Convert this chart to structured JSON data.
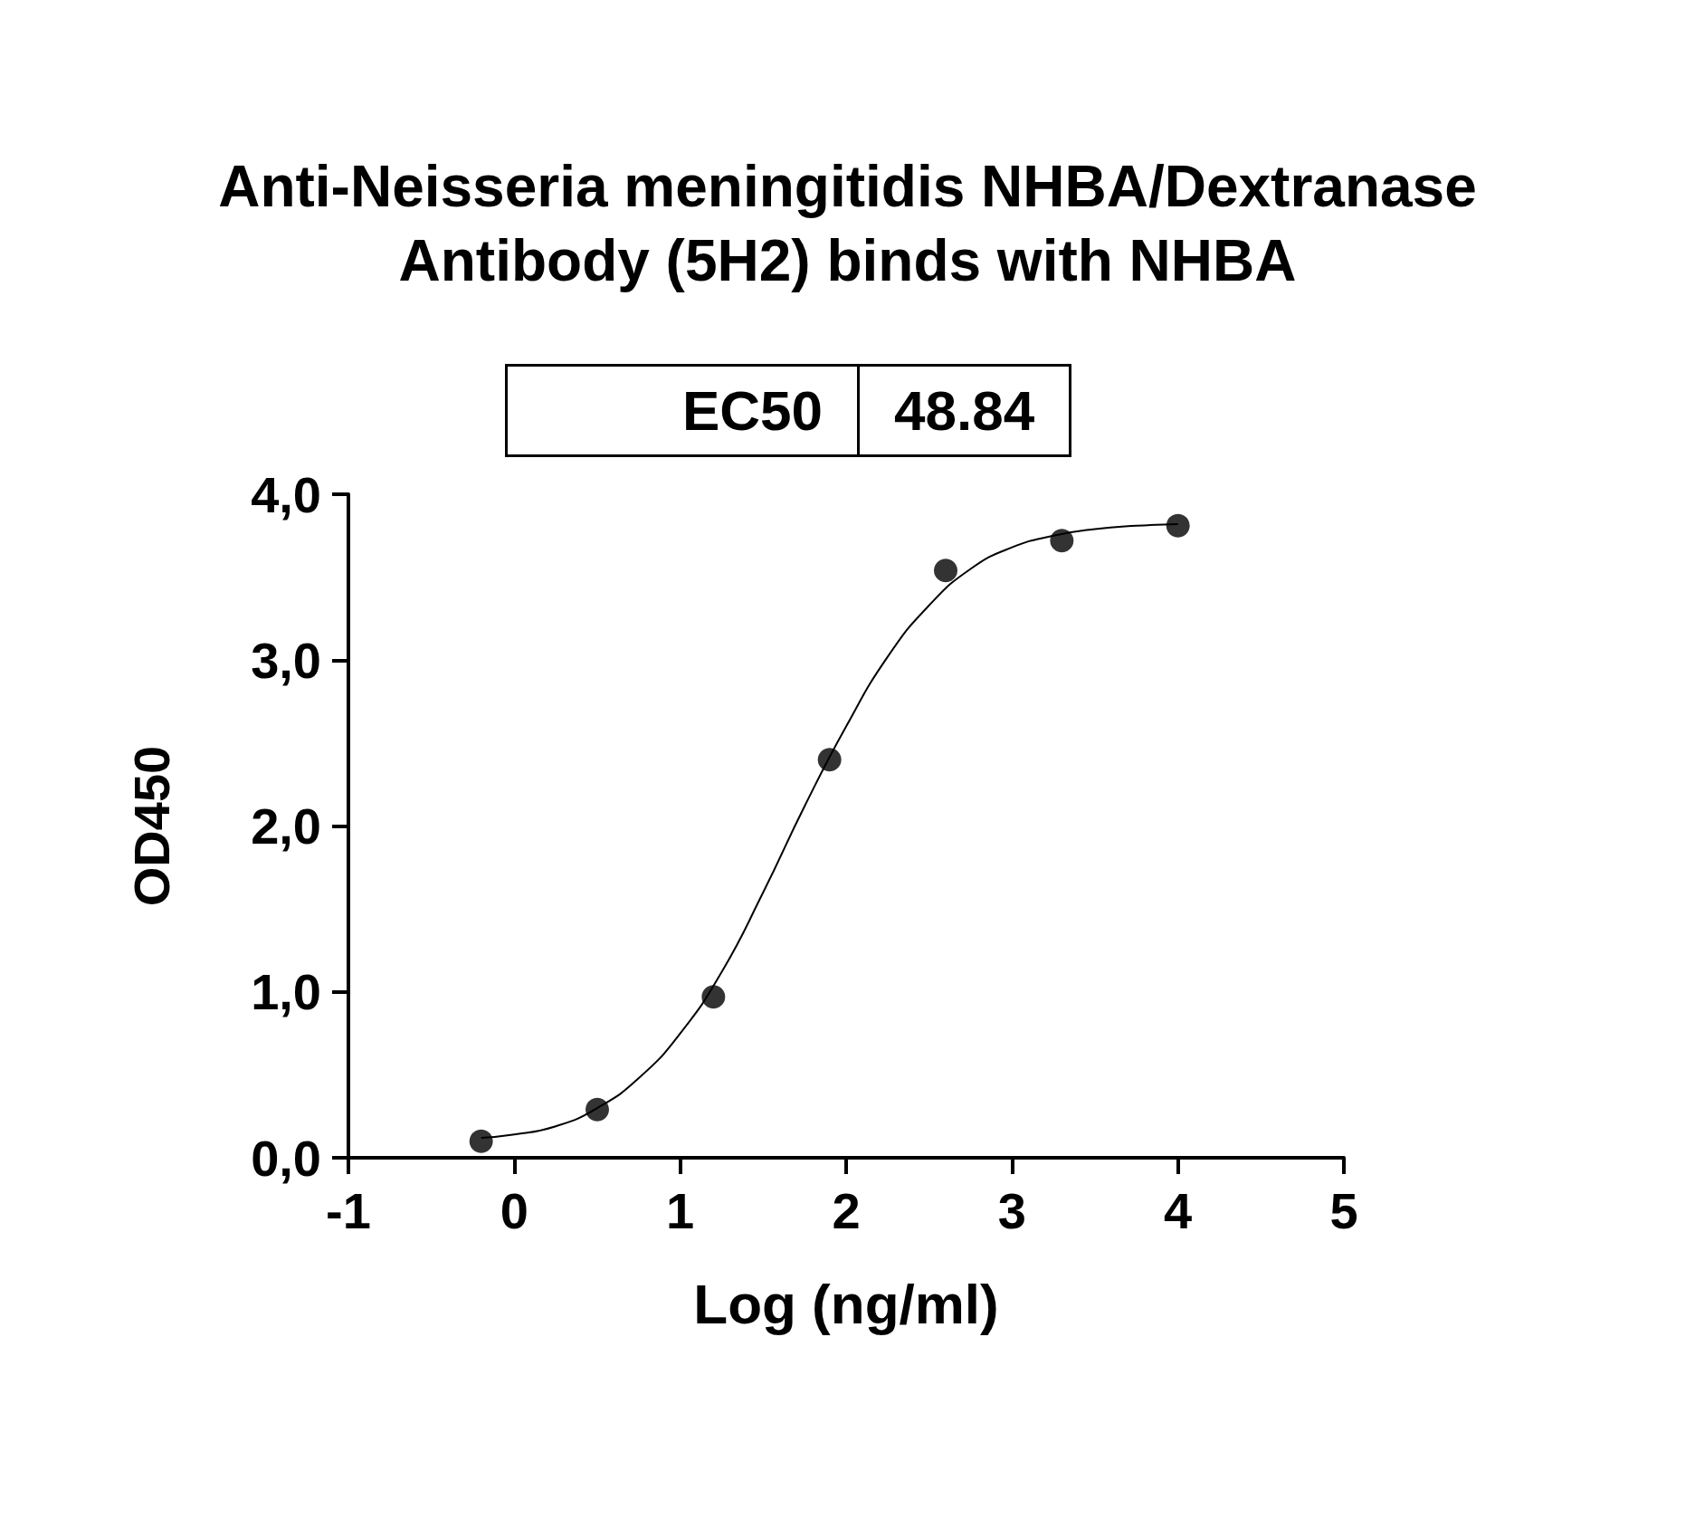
{
  "chart_data": {
    "type": "scatter",
    "title": "Anti-Neisseria meningitidis NHBA/Dextranase\nAntibody (5H2) binds with NHBA",
    "xlabel": "Log (ng/ml)",
    "ylabel": "OD450",
    "annotations": [
      "EC50",
      "48.84"
    ],
    "series": [
      {
        "color": "#000000",
        "marker": "circle",
        "x": [
          -0.2,
          0.5,
          1.2,
          1.9,
          2.6,
          3.3,
          4.0
        ],
        "values": [
          0.1,
          0.29,
          0.97,
          2.4,
          3.54,
          3.72,
          3.81
        ]
      },
      {
        "type": "line",
        "color": "#000000",
        "marker": "none",
        "x": [
          -0.2,
          0,
          0.25,
          0.5,
          0.75,
          1.0,
          1.25,
          1.5,
          1.75,
          2.0,
          2.25,
          2.5,
          2.75,
          3.0,
          3.25,
          3.5,
          3.75,
          4.0
        ],
        "values": [
          0.12,
          0.14,
          0.19,
          0.3,
          0.48,
          0.75,
          1.12,
          1.6,
          2.12,
          2.6,
          3.02,
          3.33,
          3.55,
          3.68,
          3.75,
          3.79,
          3.81,
          3.82
        ]
      }
    ],
    "xlim": [
      -1,
      5
    ],
    "xticks": [
      -1,
      0,
      1,
      2,
      3,
      4,
      5
    ],
    "ylim": [
      0,
      4
    ],
    "yticks": [
      {
        "value": 0,
        "label": "0,0"
      },
      {
        "value": 1,
        "label": "1,0"
      },
      {
        "value": 2,
        "label": "2,0"
      },
      {
        "value": 3,
        "label": "3,0"
      },
      {
        "value": 4,
        "label": "4,0"
      }
    ],
    "grid": false
  }
}
